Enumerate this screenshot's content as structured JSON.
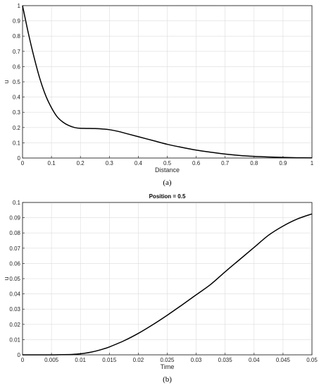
{
  "chart_data": [
    {
      "type": "line",
      "title": "",
      "xlabel": "Distance",
      "ylabel": "u",
      "xlim": [
        0,
        1
      ],
      "ylim": [
        0,
        1
      ],
      "xticks": [
        "0",
        "0.1",
        "0.2",
        "0.3",
        "0.4",
        "0.5",
        "0.6",
        "0.7",
        "0.8",
        "0.9",
        "1"
      ],
      "yticks": [
        "0",
        "0.1",
        "0.2",
        "0.3",
        "0.4",
        "0.5",
        "0.6",
        "0.7",
        "0.8",
        "0.9",
        "1"
      ],
      "grid": true,
      "panel_label": "(a)",
      "series": [
        {
          "color": "#000000",
          "x": [
            0,
            0.02,
            0.04,
            0.06,
            0.08,
            0.1,
            0.12,
            0.14,
            0.16,
            0.18,
            0.2,
            0.22,
            0.25,
            0.28,
            0.3,
            0.33,
            0.36,
            0.4,
            0.45,
            0.5,
            0.55,
            0.6,
            0.65,
            0.7,
            0.75,
            0.8,
            0.85,
            0.9,
            0.95,
            1.0
          ],
          "y": [
            1.0,
            0.82,
            0.66,
            0.52,
            0.41,
            0.33,
            0.27,
            0.235,
            0.213,
            0.2,
            0.195,
            0.194,
            0.193,
            0.19,
            0.186,
            0.175,
            0.16,
            0.14,
            0.115,
            0.09,
            0.07,
            0.052,
            0.038,
            0.026,
            0.017,
            0.011,
            0.007,
            0.004,
            0.002,
            0.001
          ]
        }
      ]
    },
    {
      "type": "line",
      "title": "Position = 0.5",
      "xlabel": "Time",
      "ylabel": "u",
      "xlim": [
        0,
        0.05
      ],
      "ylim": [
        0,
        0.1
      ],
      "xticks": [
        "0",
        "0.005",
        "0.01",
        "0.015",
        "0.02",
        "0.025",
        "0.03",
        "0.035",
        "0.04",
        "0.045",
        "0.05"
      ],
      "yticks": [
        "0",
        "0.01",
        "0.02",
        "0.03",
        "0.04",
        "0.05",
        "0.06",
        "0.07",
        "0.08",
        "0.09",
        "0.1"
      ],
      "grid": true,
      "panel_label": "(b)",
      "series": [
        {
          "color": "#000000",
          "x": [
            0,
            0.004,
            0.006,
            0.008,
            0.009,
            0.01,
            0.011,
            0.012,
            0.013,
            0.014,
            0.015,
            0.0175,
            0.02,
            0.0225,
            0.025,
            0.0275,
            0.03,
            0.0325,
            0.035,
            0.0375,
            0.04,
            0.0425,
            0.045,
            0.0475,
            0.05
          ],
          "y": [
            0,
            0,
            5e-05,
            0.0002,
            0.0004,
            0.0007,
            0.0012,
            0.0019,
            0.0028,
            0.0039,
            0.0052,
            0.0092,
            0.0141,
            0.0198,
            0.026,
            0.0326,
            0.0394,
            0.0462,
            0.0545,
            0.0625,
            0.0705,
            0.0785,
            0.0845,
            0.0892,
            0.0925
          ]
        }
      ]
    }
  ]
}
